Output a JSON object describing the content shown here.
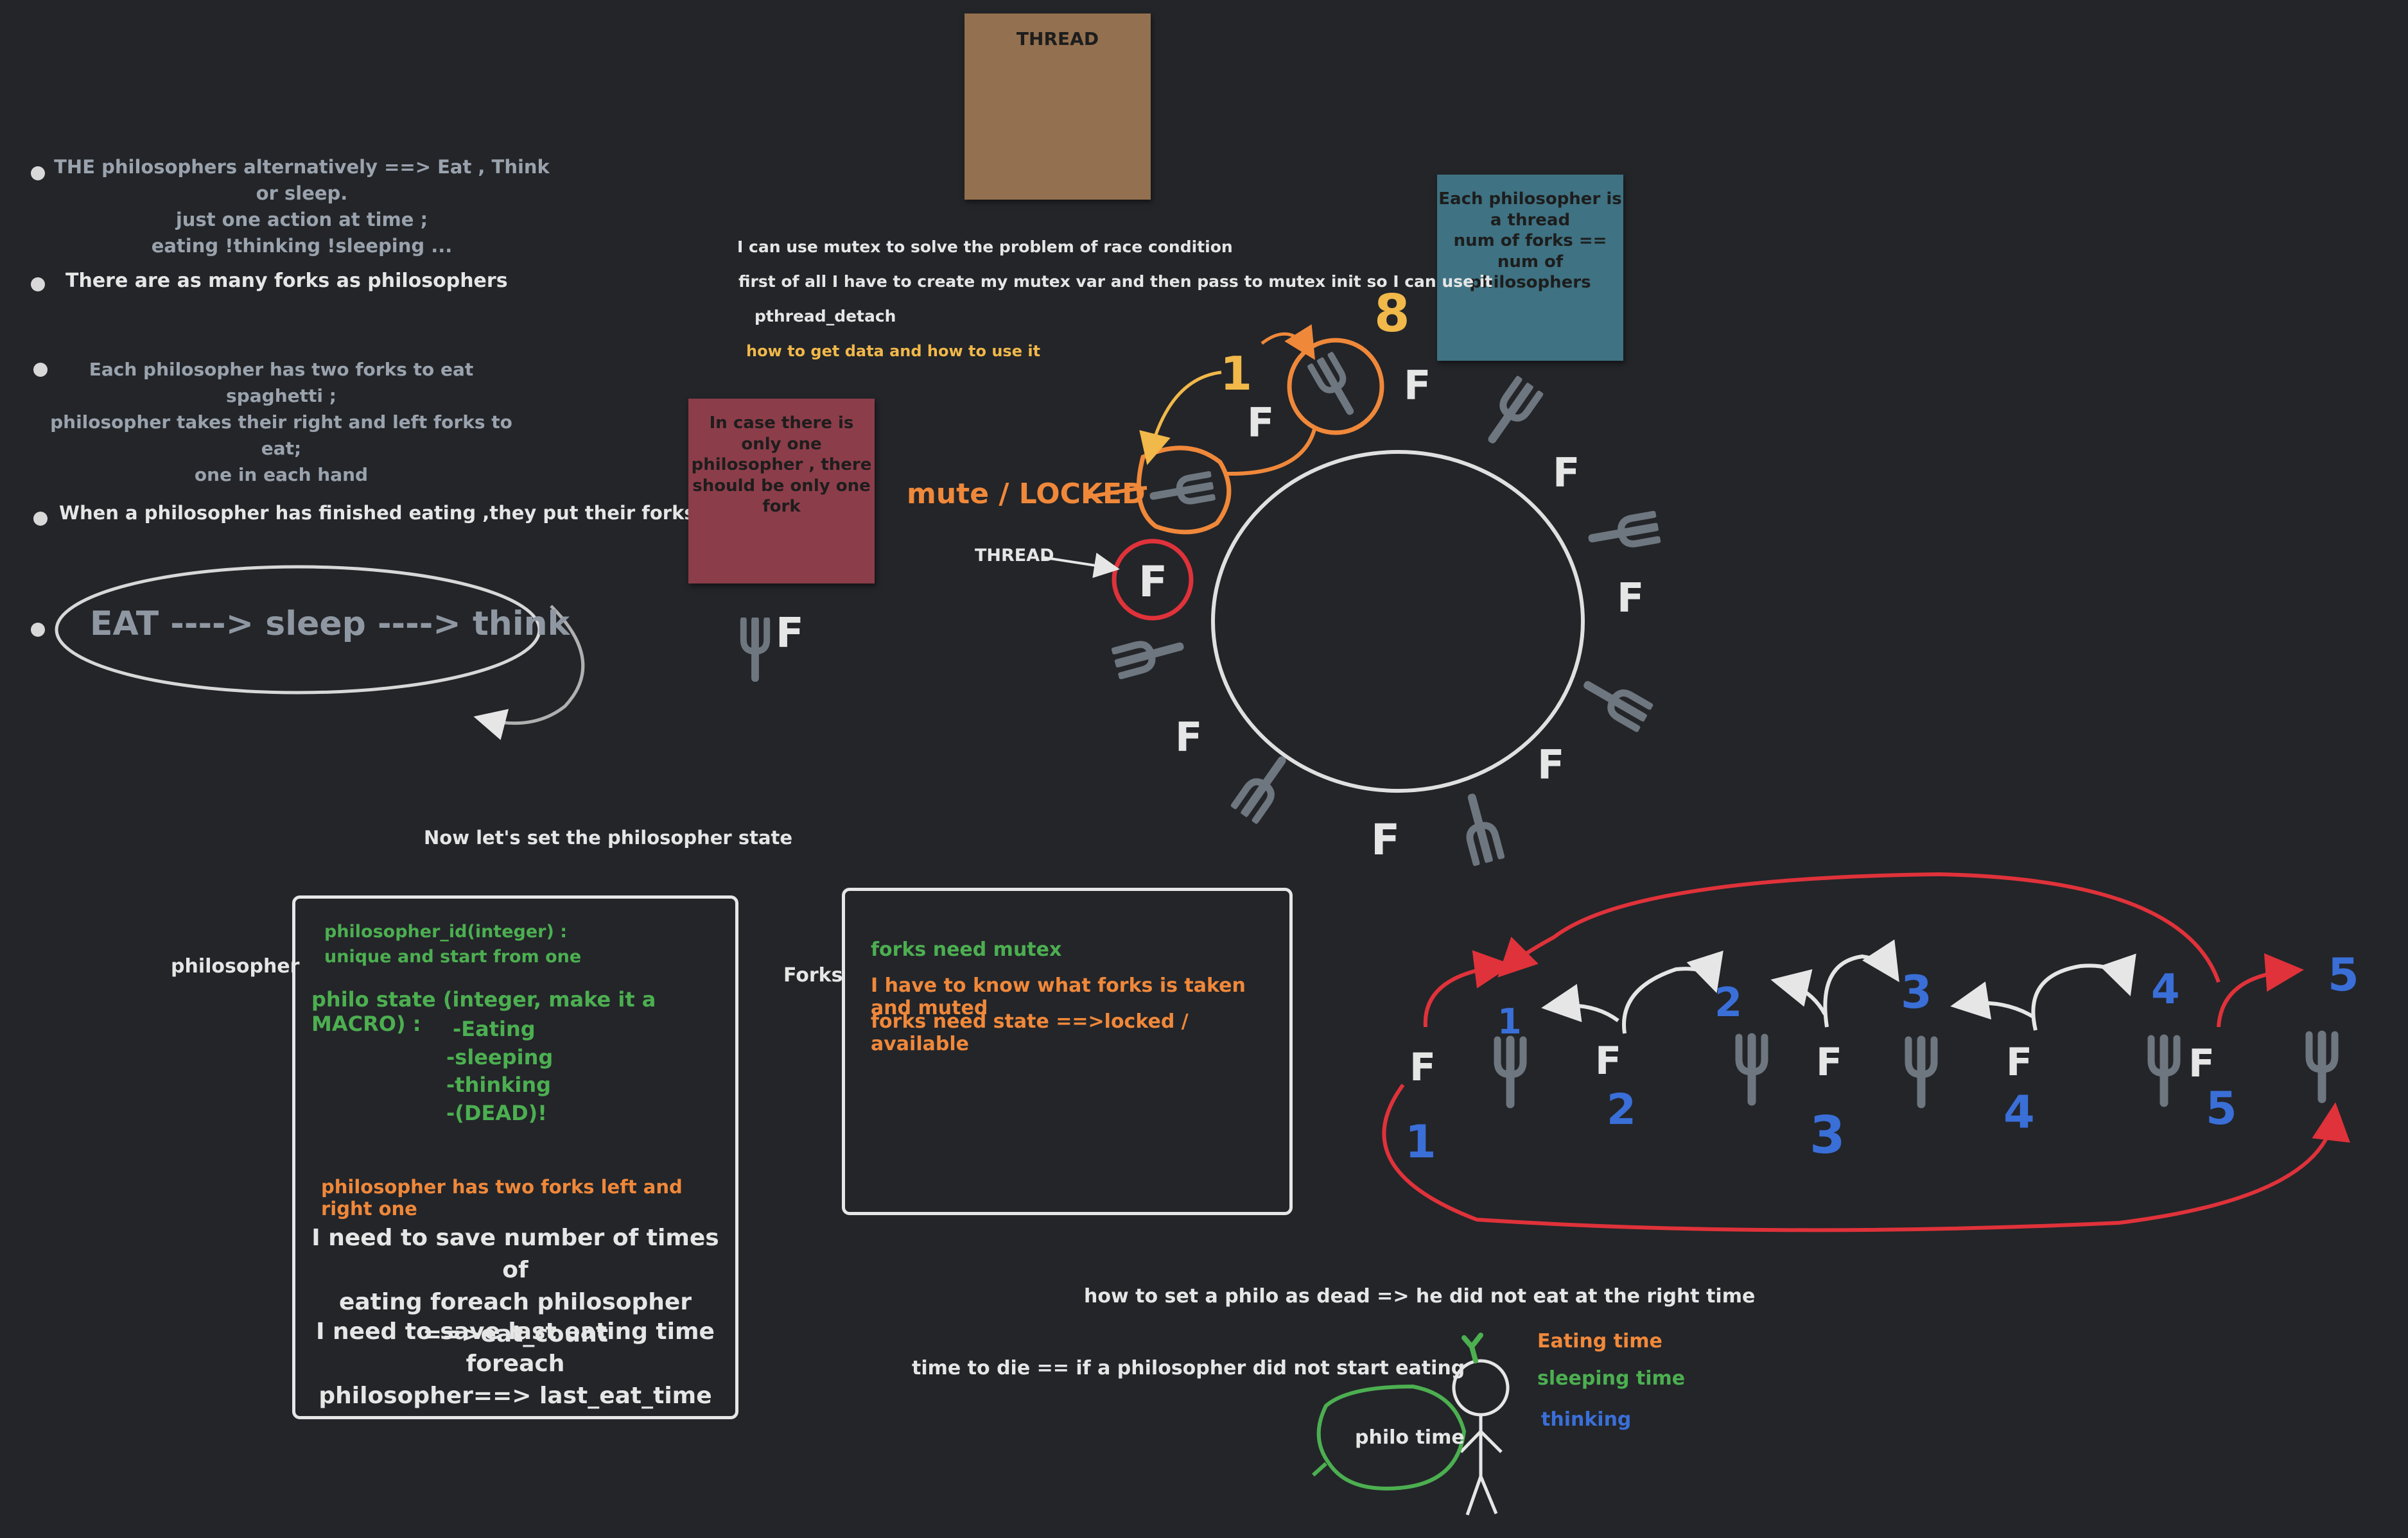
{
  "colors": {
    "background": "#232529",
    "text_gray": "#9aa3ad",
    "text_white": "#e6e6e6",
    "green": "#4caf50",
    "orange": "#f0883a",
    "yellow": "#f1b84a",
    "blue": "#3a6fd8",
    "red": "#e0323a",
    "fork_gray": "#6e767f",
    "note_brown": "#93704f",
    "note_red": "#8c3d4a",
    "note_teal": "#3f7282"
  },
  "rules": {
    "alternate": "THE philosophers alternatively ==> Eat , Think or sleep.\njust one action at time ;\neating !thinking !sleeping ...",
    "forks_count": "There are as many forks as philosophers",
    "two_forks": "Each philosopher has two forks to eat spaghetti ;\nphilosopher takes their right and left forks to eat;\none in each hand",
    "put_back": "When a philosopher has finished eating ,they put their forks back",
    "cycle": "EAT ----> sleep ----> think"
  },
  "notes": {
    "thread": "THREAD",
    "one_philosopher": "In case there is\nonly one\nphilosopher , there\nshould be only one\nfork",
    "each_thread": "Each philosopher is\na thread\nnum of forks ==\nnum of philosophers"
  },
  "mutex_notes": {
    "race": "I can use mutex to solve the problem of race condition",
    "create": "first of all I have to create my mutex var and then pass to mutex init so I can use it",
    "detach": "pthread_detach",
    "get_data": "how to get data and how to use it"
  },
  "circle_diagram": {
    "mutex_label": "mute / LOCKED",
    "thread_label": "THREAD",
    "fork_letter": "F",
    "num_one": "1",
    "num_eight": "8"
  },
  "state_section": {
    "heading": "Now let's set the philosopher state",
    "philosopher_label": "philosopher",
    "forks_label": "Forks",
    "philo_id": "philosopher_id(integer) :\nunique and start from one",
    "philo_state": "philo state (integer, make it a MACRO) :",
    "states": [
      "-Eating",
      "-sleeping",
      "-thinking",
      "-(DEAD)!"
    ],
    "two_forks": "philosopher has two forks left and right one",
    "eat_count": "I need to save  number of times of\neating foreach philosopher ==>eat_count",
    "last_eat": "I need to save last eating time foreach\nphilosopher==> last_eat_time",
    "forks_mutex": "forks need mutex",
    "forks_taken": "I have to know what forks is taken and muted",
    "forks_state": "forks need state ==>locked / available"
  },
  "row_diagram": {
    "philosopher_numbers": [
      "1",
      "2",
      "3",
      "4",
      "5"
    ],
    "fork_numbers": [
      "1",
      "2",
      "3",
      "4",
      "5"
    ],
    "fork_letter": "F"
  },
  "timing": {
    "dead": "how to set a philo as dead => he did not eat at the right time",
    "time_to_die": "time to die == if a philosopher did not start eating",
    "philo_time": "philo time",
    "eating_time": "Eating time",
    "sleeping_time": "sleeping time",
    "thinking": "thinking"
  }
}
